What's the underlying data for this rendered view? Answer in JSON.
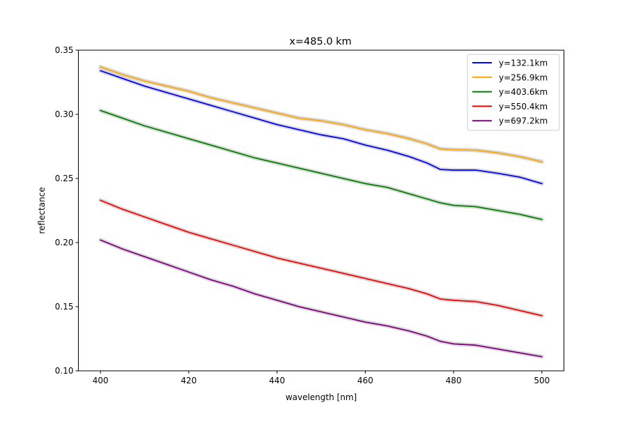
{
  "chart_data": {
    "type": "line",
    "title": "x=485.0 km",
    "xlabel": "wavelength [nm]",
    "ylabel": "reflectance",
    "xlim": [
      395,
      505
    ],
    "ylim": [
      0.1,
      0.35
    ],
    "xticks": [
      400,
      420,
      440,
      460,
      480,
      500
    ],
    "yticks": [
      0.1,
      0.15,
      0.2,
      0.25,
      0.3,
      0.35
    ],
    "xtick_labels": [
      "400",
      "420",
      "440",
      "460",
      "480",
      "500"
    ],
    "ytick_labels": [
      "0.10",
      "0.15",
      "0.20",
      "0.25",
      "0.30",
      "0.35"
    ],
    "grid": false,
    "legend_position": "top-right",
    "band_color": "#bbbbbb",
    "x": [
      400,
      405,
      410,
      415,
      420,
      425,
      430,
      435,
      440,
      445,
      450,
      455,
      460,
      465,
      470,
      474,
      477,
      480,
      485,
      490,
      495,
      500
    ],
    "series": [
      {
        "name": "y=132.1km",
        "color": "#0000ff",
        "values": [
          0.334,
          0.328,
          0.322,
          0.317,
          0.312,
          0.307,
          0.302,
          0.297,
          0.292,
          0.288,
          0.284,
          0.281,
          0.276,
          0.272,
          0.267,
          0.262,
          0.257,
          0.2565,
          0.2565,
          0.254,
          0.251,
          0.246
        ]
      },
      {
        "name": "y=256.9km",
        "color": "#ffa500",
        "values": [
          0.337,
          0.331,
          0.326,
          0.322,
          0.318,
          0.313,
          0.309,
          0.305,
          0.301,
          0.297,
          0.295,
          0.292,
          0.288,
          0.285,
          0.281,
          0.277,
          0.273,
          0.2725,
          0.272,
          0.27,
          0.267,
          0.263
        ]
      },
      {
        "name": "y=403.6km",
        "color": "#008000",
        "values": [
          0.303,
          0.297,
          0.291,
          0.286,
          0.281,
          0.276,
          0.271,
          0.266,
          0.262,
          0.258,
          0.254,
          0.25,
          0.246,
          0.243,
          0.238,
          0.234,
          0.231,
          0.229,
          0.228,
          0.225,
          0.222,
          0.218
        ]
      },
      {
        "name": "y=550.4km",
        "color": "#ff0000",
        "values": [
          0.233,
          0.226,
          0.22,
          0.214,
          0.208,
          0.203,
          0.198,
          0.193,
          0.188,
          0.184,
          0.18,
          0.176,
          0.172,
          0.168,
          0.164,
          0.16,
          0.156,
          0.155,
          0.154,
          0.151,
          0.147,
          0.143
        ]
      },
      {
        "name": "y=697.2km",
        "color": "#800080",
        "values": [
          0.202,
          0.195,
          0.189,
          0.183,
          0.177,
          0.171,
          0.166,
          0.16,
          0.155,
          0.15,
          0.146,
          0.142,
          0.138,
          0.135,
          0.131,
          0.127,
          0.123,
          0.121,
          0.12,
          0.117,
          0.114,
          0.111
        ]
      }
    ]
  }
}
